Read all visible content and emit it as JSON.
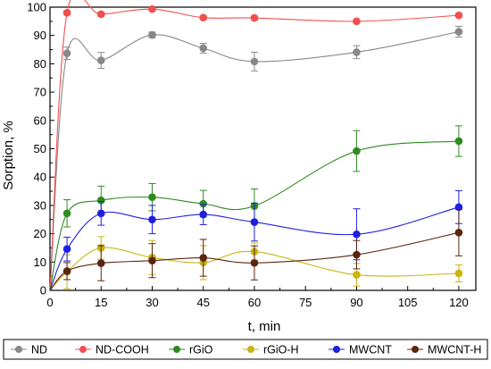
{
  "chart_data": {
    "type": "line",
    "title": "",
    "xlabel": "t, min",
    "ylabel": "Sorption, %",
    "xlim": [
      0,
      125
    ],
    "ylim": [
      0,
      100
    ],
    "x_ticks": [
      0,
      15,
      30,
      45,
      60,
      75,
      90,
      105,
      120
    ],
    "y_ticks": [
      0,
      10,
      20,
      30,
      40,
      50,
      60,
      70,
      80,
      90,
      100
    ],
    "x": [
      0,
      5,
      15,
      30,
      45,
      60,
      90,
      120
    ],
    "grid": false,
    "legend_position": "bottom",
    "series": [
      {
        "name": "ND",
        "color": "#888888",
        "values": [
          0,
          83.7,
          81.2,
          90.2,
          85.5,
          80.8,
          84.1,
          91.3
        ],
        "errors": [
          0,
          2.2,
          2.8,
          1.0,
          1.7,
          3.3,
          2.3,
          1.9
        ]
      },
      {
        "name": "ND-COOH",
        "color": "#f24f4f",
        "values": [
          0,
          98.0,
          97.5,
          99.3,
          96.3,
          96.2,
          95.0,
          97.1
        ],
        "errors": [
          0,
          0.7,
          0.7,
          0.5,
          0.6,
          0.6,
          0.6,
          0.6
        ]
      },
      {
        "name": "rGiO",
        "color": "#2e8b1f",
        "values": [
          0,
          27.2,
          31.8,
          32.9,
          30.6,
          29.8,
          49.2,
          52.7
        ],
        "errors": [
          0,
          4.8,
          5.0,
          4.8,
          4.7,
          6.0,
          7.2,
          5.4
        ]
      },
      {
        "name": "rGiO-H",
        "color": "#c8b414",
        "values": [
          0,
          6.6,
          15.0,
          11.6,
          9.8,
          13.7,
          5.5,
          6.0
        ],
        "errors": [
          0,
          6.0,
          4.0,
          6.0,
          6.0,
          3.0,
          4.0,
          3.0
        ]
      },
      {
        "name": "MWCNT",
        "color": "#1f1fe0",
        "values": [
          0,
          14.6,
          27.2,
          25.0,
          26.8,
          24.1,
          19.8,
          29.4
        ],
        "errors": [
          0,
          4.2,
          4.2,
          5.0,
          3.6,
          6.7,
          9.0,
          5.8
        ]
      },
      {
        "name": "MWCNT-H",
        "color": "#5a2510",
        "values": [
          0,
          6.8,
          9.6,
          10.5,
          11.5,
          9.7,
          12.6,
          20.4
        ],
        "errors": [
          0,
          3.0,
          6.2,
          6.0,
          6.5,
          6.0,
          5.0,
          8.2
        ]
      }
    ]
  }
}
